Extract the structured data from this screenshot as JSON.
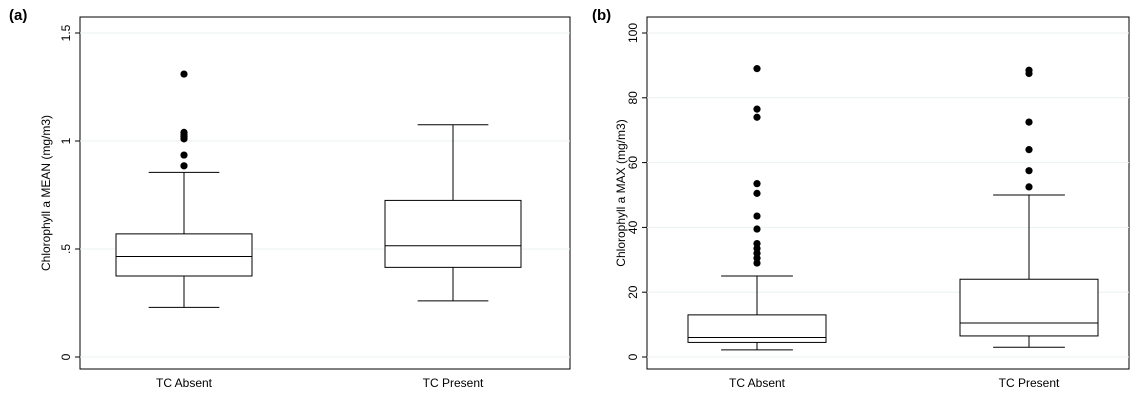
{
  "chart_data": [
    {
      "type": "box",
      "panel_label": "(a)",
      "ylabel": "Chlorophyll a MEAN (mg/m3)",
      "ylim": [
        0,
        1.5
      ],
      "yticks": [
        0,
        0.5,
        1,
        1.5
      ],
      "ytick_labels": [
        "0",
        ".5",
        "1",
        "1.5"
      ],
      "grid": true,
      "categories": [
        "TC Absent",
        "TC Present"
      ],
      "boxes": [
        {
          "category": "TC Absent",
          "whisker_low": 0.23,
          "q1": 0.375,
          "median": 0.465,
          "q3": 0.57,
          "whisker_high": 0.855,
          "outliers": [
            0.885,
            0.935,
            1.01,
            1.02,
            1.03,
            1.04,
            1.31
          ]
        },
        {
          "category": "TC Present",
          "whisker_low": 0.26,
          "q1": 0.415,
          "median": 0.515,
          "q3": 0.725,
          "whisker_high": 1.075,
          "outliers": []
        }
      ]
    },
    {
      "type": "box",
      "panel_label": "(b)",
      "ylabel": "Chlorophyll a MAX (mg/m3)",
      "ylim": [
        0,
        100
      ],
      "yticks": [
        0,
        20,
        40,
        60,
        80,
        100
      ],
      "ytick_labels": [
        "0",
        "20",
        "40",
        "60",
        "80",
        "100"
      ],
      "grid": true,
      "categories": [
        "TC Absent",
        "TC Present"
      ],
      "boxes": [
        {
          "category": "TC Absent",
          "whisker_low": 2.2,
          "q1": 4.5,
          "median": 6,
          "q3": 13,
          "whisker_high": 25,
          "outliers": [
            29,
            30.5,
            32,
            33.5,
            35,
            39.5,
            43.5,
            50.5,
            53.5,
            74,
            76.5,
            89
          ]
        },
        {
          "category": "TC Present",
          "whisker_low": 3,
          "q1": 6.5,
          "median": 10.5,
          "q3": 24,
          "whisker_high": 50,
          "outliers": [
            52.5,
            57.5,
            64,
            72.5,
            87.5,
            88.5
          ]
        }
      ]
    }
  ]
}
